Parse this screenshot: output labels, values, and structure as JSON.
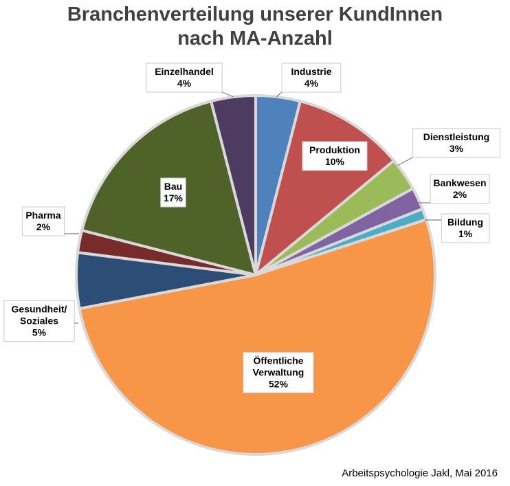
{
  "chart_data": {
    "type": "pie",
    "title_line1": "Branchenverteilung unserer KundInnen",
    "title_line2": "nach MA-Anzahl",
    "slices": [
      {
        "label": [
          "Industrie"
        ],
        "pct": "4%",
        "value": 4,
        "color": "#4F81BD"
      },
      {
        "label": [
          "Produktion"
        ],
        "pct": "10%",
        "value": 10,
        "color": "#C0504D"
      },
      {
        "label": [
          "Dienstleistung"
        ],
        "pct": "3%",
        "value": 3,
        "color": "#9BBB59"
      },
      {
        "label": [
          "Bankwesen"
        ],
        "pct": "2%",
        "value": 2,
        "color": "#8064A2"
      },
      {
        "label": [
          "Bildung"
        ],
        "pct": "1%",
        "value": 1,
        "color": "#4BACC6"
      },
      {
        "label": [
          "Öffentliche",
          "Verwaltung"
        ],
        "pct": "52%",
        "value": 52,
        "color": "#F79646"
      },
      {
        "label": [
          "Gesundheit/",
          "Soziales"
        ],
        "pct": "5%",
        "value": 5,
        "color": "#2C4D75"
      },
      {
        "label": [
          "Pharma"
        ],
        "pct": "2%",
        "value": 2,
        "color": "#772C2A"
      },
      {
        "label": [
          "Bau"
        ],
        "pct": "17%",
        "value": 17,
        "color": "#4F6228"
      },
      {
        "label": [
          "Einzelhandel"
        ],
        "pct": "4%",
        "value": 4,
        "color": "#4D3B62"
      }
    ]
  },
  "source": "Arbeitspsychologie Jakl, Mai 2016"
}
